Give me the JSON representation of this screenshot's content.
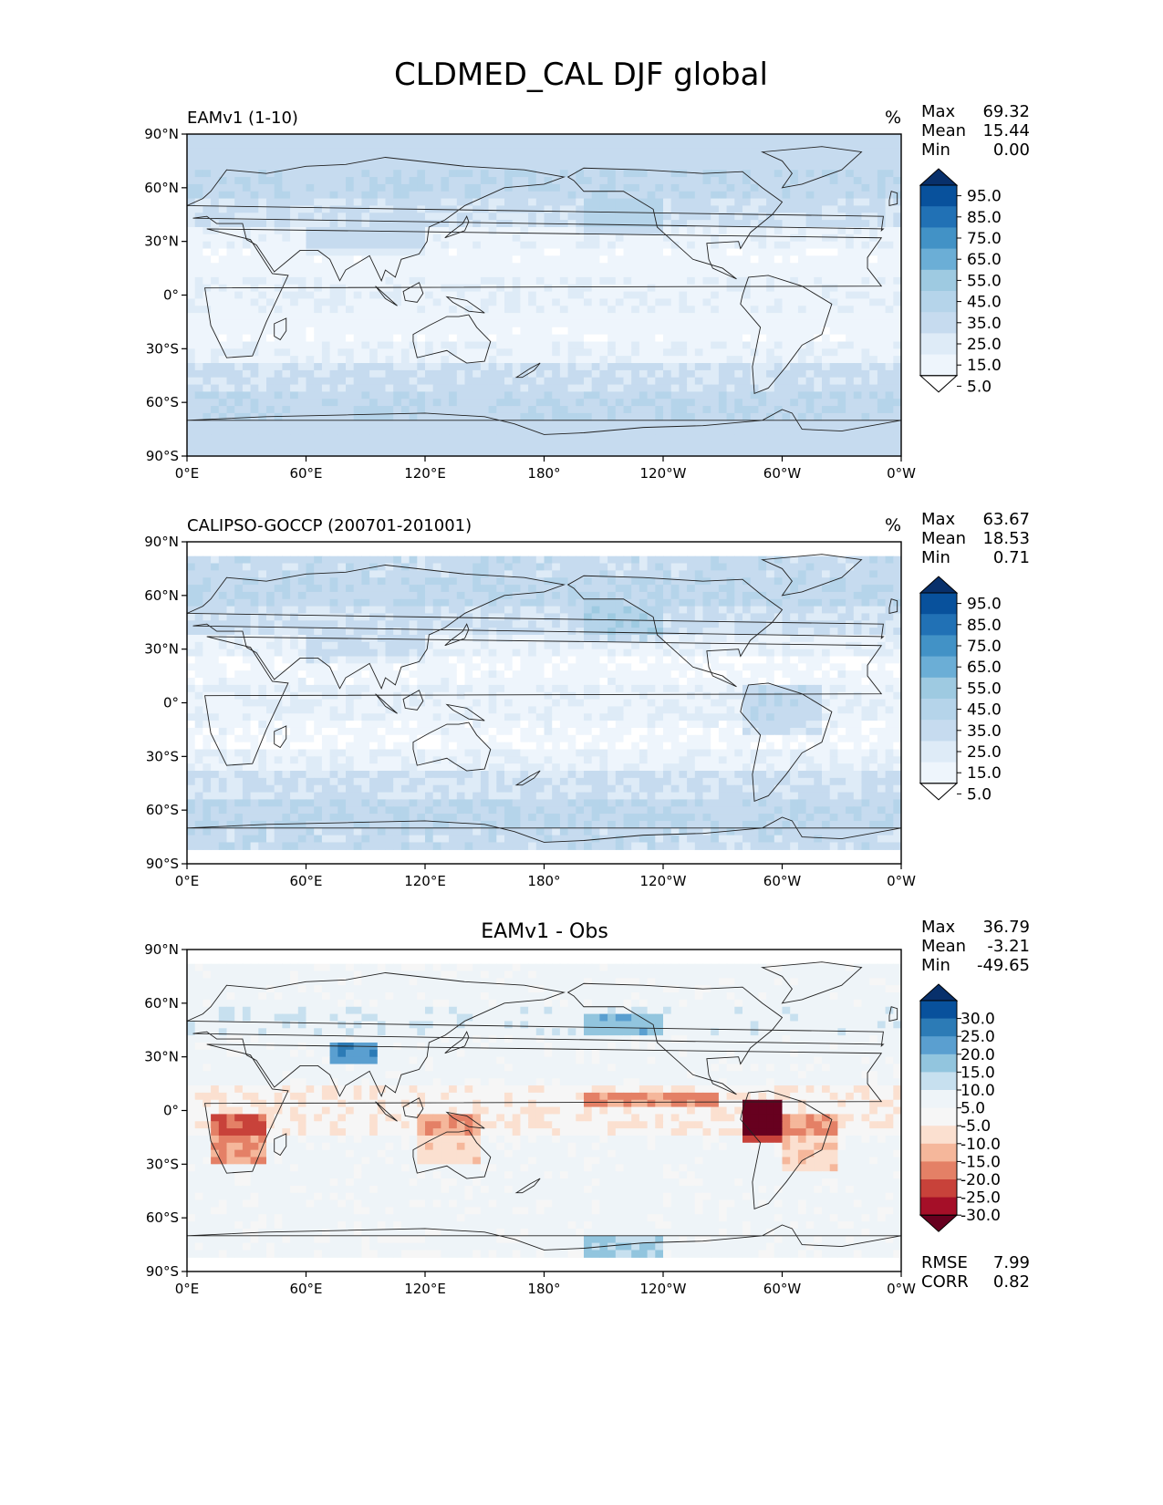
{
  "figure_title": "CLDMED_CAL DJF global",
  "chart_data": [
    {
      "type": "heatmap",
      "title": "EAMv1 (1-10)",
      "units": "%",
      "stats": [
        {
          "label": "Max",
          "value": "69.32"
        },
        {
          "label": "Mean",
          "value": "15.44"
        },
        {
          "label": "Min",
          "value": "0.00"
        }
      ],
      "colorbar_ticks": [
        "95.0",
        "85.0",
        "75.0",
        "65.0",
        "55.0",
        "45.0",
        "35.0",
        "25.0",
        "15.0",
        "5.0"
      ],
      "colorbar_colors": [
        "#08306b",
        "#08519c",
        "#2171b5",
        "#4292c6",
        "#6baed6",
        "#9ecae1",
        "#b5d4ea",
        "#c6dbef",
        "#deebf7",
        "#eef5fc",
        "#ffffff"
      ],
      "x_ticks": [
        "0°E",
        "60°E",
        "120°E",
        "180°",
        "120°W",
        "60°W",
        "0°W"
      ],
      "y_ticks": [
        "90°N",
        "60°N",
        "30°N",
        "0°",
        "30°S",
        "60°S",
        "90°S"
      ],
      "ylim": [
        -90,
        90
      ],
      "xlim": [
        0,
        360
      ],
      "colormap": "sequential-blues"
    },
    {
      "type": "heatmap",
      "title": "CALIPSO-GOCCP (200701-201001)",
      "units": "%",
      "stats": [
        {
          "label": "Max",
          "value": "63.67"
        },
        {
          "label": "Mean",
          "value": "18.53"
        },
        {
          "label": "Min",
          "value": "0.71"
        }
      ],
      "colorbar_ticks": [
        "95.0",
        "85.0",
        "75.0",
        "65.0",
        "55.0",
        "45.0",
        "35.0",
        "25.0",
        "15.0",
        "5.0"
      ],
      "colorbar_colors": [
        "#08306b",
        "#08519c",
        "#2171b5",
        "#4292c6",
        "#6baed6",
        "#9ecae1",
        "#b5d4ea",
        "#c6dbef",
        "#deebf7",
        "#eef5fc",
        "#ffffff"
      ],
      "x_ticks": [
        "0°E",
        "60°E",
        "120°E",
        "180°",
        "120°W",
        "60°W",
        "0°W"
      ],
      "y_ticks": [
        "90°N",
        "60°N",
        "30°N",
        "0°",
        "30°S",
        "60°S",
        "90°S"
      ],
      "ylim": [
        -90,
        90
      ],
      "xlim": [
        0,
        360
      ],
      "colormap": "sequential-blues"
    },
    {
      "type": "heatmap",
      "title": "EAMv1 - Obs",
      "units": "",
      "stats": [
        {
          "label": "Max",
          "value": "36.79"
        },
        {
          "label": "Mean",
          "value": "-3.21"
        },
        {
          "label": "Min",
          "value": "-49.65"
        }
      ],
      "bottom_stats": [
        {
          "label": "RMSE",
          "value": "7.99"
        },
        {
          "label": "CORR",
          "value": "0.82"
        }
      ],
      "colorbar_ticks": [
        "30.0",
        "25.0",
        "20.0",
        "15.0",
        "10.0",
        "5.0",
        "-5.0",
        "-10.0",
        "-15.0",
        "-20.0",
        "-25.0",
        "-30.0"
      ],
      "colorbar_colors": [
        "#08306b",
        "#08519c",
        "#2c7bb6",
        "#5a9fd0",
        "#92c5de",
        "#c7e0ef",
        "#eef4f8",
        "#f6f6f6",
        "#fbe0d0",
        "#f5b79b",
        "#e48066",
        "#c8423a",
        "#a50f28",
        "#67001f"
      ],
      "x_ticks": [
        "0°E",
        "60°E",
        "120°E",
        "180°",
        "120°W",
        "60°W",
        "0°W"
      ],
      "y_ticks": [
        "90°N",
        "60°N",
        "30°N",
        "0°",
        "30°S",
        "60°S",
        "90°S"
      ],
      "ylim": [
        -90,
        90
      ],
      "xlim": [
        0,
        360
      ],
      "colormap": "diverging-red-blue"
    }
  ]
}
